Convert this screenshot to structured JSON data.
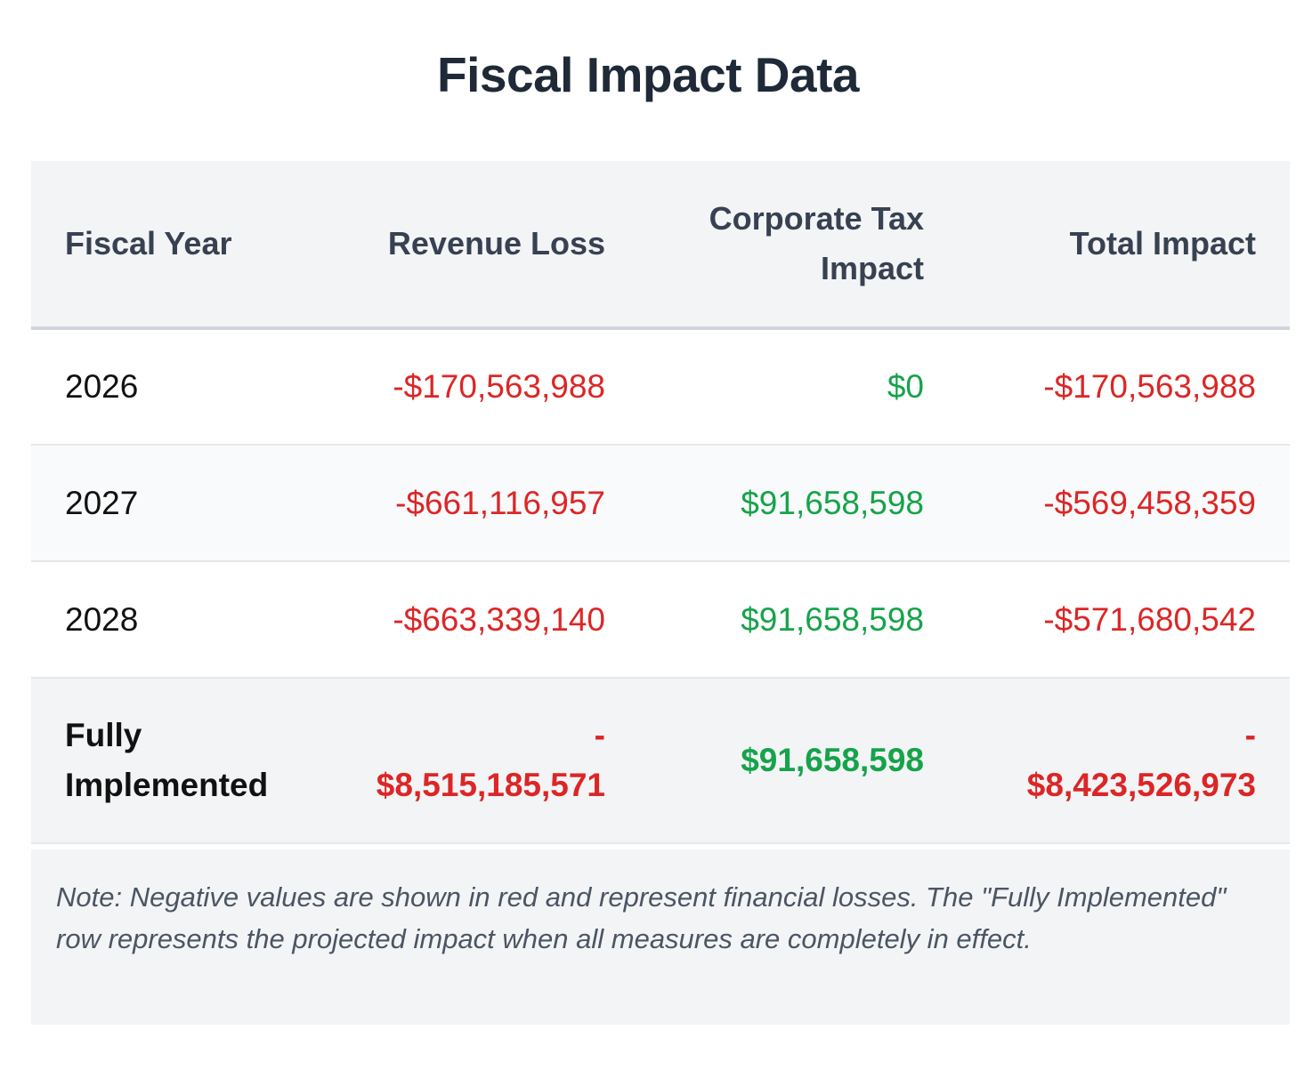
{
  "title": "Fiscal Impact Data",
  "colors": {
    "negative": "#dc2626",
    "positive": "#16a34a",
    "header_bg": "#f3f4f6"
  },
  "table": {
    "headers": {
      "fiscal_year": "Fiscal Year",
      "revenue_loss": "Revenue Loss",
      "corporate_tax_line1": "Corporate Tax",
      "corporate_tax_line2": "Impact",
      "total_impact": "Total Impact"
    },
    "rows": [
      {
        "year": "2026",
        "revenue_loss": "-$170,563,988",
        "corporate_tax": "$0",
        "total_impact": "-$170,563,988"
      },
      {
        "year": "2027",
        "revenue_loss": "-$661,116,957",
        "corporate_tax": "$91,658,598",
        "total_impact": "-$569,458,359"
      },
      {
        "year": "2028",
        "revenue_loss": "-$663,339,140",
        "corporate_tax": "$91,658,598",
        "total_impact": "-$571,680,542"
      }
    ],
    "total_row": {
      "label_line1": "Fully",
      "label_line2": "Implemented",
      "revenue_loss_sign": "-",
      "revenue_loss_amount": "$8,515,185,571",
      "corporate_tax": "$91,658,598",
      "total_impact_sign": "-",
      "total_impact_amount": "$8,423,526,973"
    }
  },
  "note": "Note: Negative values are shown in red and represent financial losses. The \"Fully Implemented\" row represents the projected impact when all measures are completely in effect."
}
